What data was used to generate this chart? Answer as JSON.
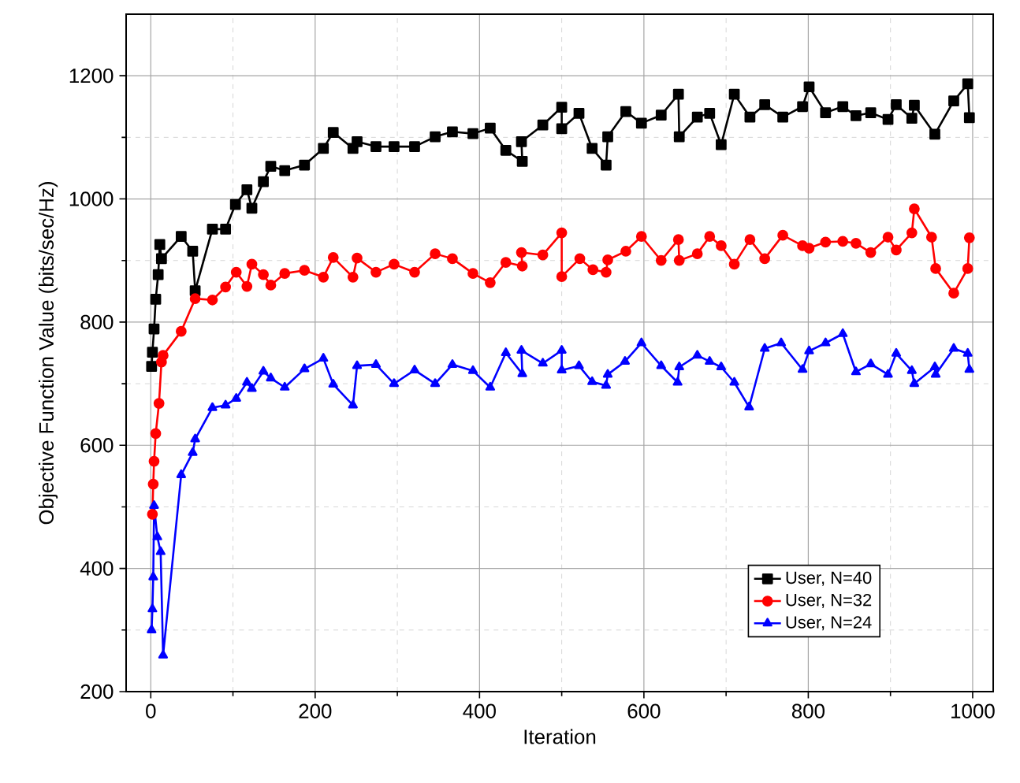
{
  "chart_data": {
    "type": "line",
    "xlabel": "Iteration",
    "ylabel": "Objective Function Value (bits/sec/Hz)",
    "xlim": [
      -30,
      1025
    ],
    "ylim": [
      200,
      1300
    ],
    "xticks": [
      0,
      200,
      400,
      600,
      800,
      1000
    ],
    "yticks": [
      200,
      400,
      600,
      800,
      1000,
      1200
    ],
    "grid": true,
    "legend": "bottom right",
    "line_style": "solid",
    "series": [
      {
        "name": "User, N=40",
        "color": "#000000",
        "marker": "square",
        "x": [
          1,
          2,
          4,
          6,
          9,
          11,
          13,
          37,
          51,
          54,
          75,
          91,
          103,
          117,
          123,
          137,
          146,
          163,
          187,
          210,
          222,
          246,
          251,
          274,
          296,
          321,
          346,
          367,
          392,
          413,
          432,
          452,
          451,
          477,
          500,
          500,
          521,
          537,
          554,
          556,
          578,
          597,
          621,
          642,
          643,
          665,
          680,
          694,
          710,
          729,
          747,
          769,
          793,
          801,
          821,
          842,
          858,
          876,
          897,
          907,
          926,
          929,
          954,
          977,
          994,
          996
        ],
        "values": [
          728,
          751,
          789,
          837,
          877,
          926,
          903,
          939,
          915,
          851,
          951,
          951,
          991,
          1015,
          985,
          1028,
          1053,
          1046,
          1055,
          1082,
          1108,
          1082,
          1093,
          1085,
          1085,
          1085,
          1101,
          1109,
          1106,
          1115,
          1079,
          1061,
          1093,
          1120,
          1149,
          1114,
          1139,
          1082,
          1055,
          1101,
          1142,
          1123,
          1136,
          1170,
          1101,
          1133,
          1139,
          1088,
          1170,
          1133,
          1153,
          1133,
          1150,
          1182,
          1140,
          1150,
          1135,
          1140,
          1129,
          1153,
          1131,
          1152,
          1105,
          1159,
          1187,
          1132
        ]
      },
      {
        "name": "User, N=32",
        "color": "#ff0000",
        "marker": "circle",
        "x": [
          2,
          3,
          4,
          6,
          10,
          13,
          15,
          37,
          54,
          75,
          91,
          104,
          117,
          123,
          137,
          146,
          163,
          187,
          210,
          222,
          246,
          251,
          274,
          296,
          321,
          346,
          367,
          392,
          413,
          432,
          452,
          451,
          477,
          500,
          500,
          522,
          538,
          554,
          556,
          578,
          597,
          621,
          642,
          643,
          665,
          680,
          694,
          710,
          729,
          747,
          769,
          793,
          801,
          821,
          842,
          858,
          876,
          897,
          907,
          926,
          929,
          950,
          955,
          977,
          994,
          996
        ],
        "values": [
          488,
          537,
          574,
          619,
          668,
          735,
          746,
          785,
          838,
          836,
          857,
          881,
          858,
          894,
          877,
          860,
          879,
          884,
          873,
          905,
          873,
          904,
          881,
          894,
          881,
          911,
          903,
          879,
          864,
          897,
          891,
          913,
          909,
          945,
          874,
          903,
          885,
          881,
          901,
          915,
          939,
          900,
          934,
          900,
          911,
          939,
          924,
          894,
          934,
          903,
          941,
          924,
          920,
          930,
          931,
          928,
          913,
          938,
          917,
          945,
          984,
          938,
          887,
          847,
          887,
          937
        ]
      },
      {
        "name": "User, N=24",
        "color": "#0000ff",
        "marker": "triangle",
        "x": [
          1,
          2,
          3,
          4,
          8,
          12,
          15,
          37,
          51,
          54,
          75,
          91,
          104,
          117,
          123,
          137,
          146,
          163,
          187,
          210,
          222,
          246,
          251,
          274,
          296,
          321,
          346,
          367,
          392,
          413,
          432,
          452,
          451,
          477,
          500,
          500,
          521,
          537,
          554,
          556,
          577,
          597,
          621,
          641,
          643,
          665,
          680,
          694,
          710,
          728,
          747,
          767,
          793,
          801,
          821,
          842,
          858,
          876,
          897,
          907,
          926,
          929,
          954,
          955,
          977,
          994,
          996
        ],
        "values": [
          300,
          334,
          386,
          502,
          451,
          427,
          259,
          552,
          588,
          610,
          661,
          665,
          676,
          702,
          692,
          720,
          709,
          694,
          724,
          741,
          699,
          665,
          729,
          731,
          700,
          722,
          700,
          731,
          721,
          694,
          750,
          716,
          754,
          733,
          754,
          722,
          729,
          703,
          697,
          715,
          736,
          766,
          729,
          702,
          727,
          746,
          736,
          727,
          702,
          662,
          757,
          766,
          723,
          753,
          766,
          781,
          719,
          732,
          715,
          749,
          721,
          700,
          727,
          715,
          757,
          749,
          723
        ]
      }
    ]
  }
}
